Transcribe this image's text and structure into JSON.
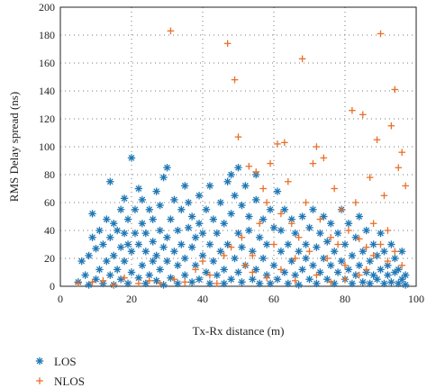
{
  "chart_data": {
    "type": "scatter",
    "xlabel": "Tx-Rx distance (m)",
    "ylabel": "RMS Delay spread (ns)",
    "xlim": [
      0,
      100
    ],
    "ylim": [
      0,
      200
    ],
    "xticks": [
      "0",
      "20",
      "40",
      "60",
      "80",
      "100"
    ],
    "yticks": [
      "0",
      "20",
      "40",
      "60",
      "80",
      "100",
      "120",
      "140",
      "160",
      "180",
      "200"
    ],
    "grid": "dotted",
    "legend_position": "bottom-left",
    "series": [
      {
        "name": "LOS",
        "color": "#1f77b4",
        "marker": "asterisk",
        "points": [
          [
            5,
            3
          ],
          [
            6,
            18
          ],
          [
            7,
            8
          ],
          [
            8,
            1
          ],
          [
            8,
            22
          ],
          [
            9,
            35
          ],
          [
            9,
            52
          ],
          [
            10,
            5
          ],
          [
            10,
            27
          ],
          [
            11,
            12
          ],
          [
            11,
            40
          ],
          [
            12,
            2
          ],
          [
            12,
            30
          ],
          [
            13,
            18
          ],
          [
            13,
            48
          ],
          [
            14,
            8
          ],
          [
            14,
            35
          ],
          [
            14,
            75
          ],
          [
            15,
            1
          ],
          [
            15,
            22
          ],
          [
            15,
            45
          ],
          [
            16,
            12
          ],
          [
            16,
            40
          ],
          [
            17,
            5
          ],
          [
            17,
            28
          ],
          [
            17,
            55
          ],
          [
            18,
            18
          ],
          [
            18,
            38
          ],
          [
            18,
            63
          ],
          [
            19,
            2
          ],
          [
            19,
            30
          ],
          [
            19,
            48
          ],
          [
            20,
            10
          ],
          [
            20,
            25
          ],
          [
            20,
            92
          ],
          [
            21,
            38
          ],
          [
            21,
            55
          ],
          [
            22,
            6
          ],
          [
            22,
            30
          ],
          [
            22,
            70
          ],
          [
            23,
            15
          ],
          [
            23,
            45
          ],
          [
            23,
            62
          ],
          [
            24,
            2
          ],
          [
            24,
            25
          ],
          [
            24,
            38
          ],
          [
            25,
            8
          ],
          [
            25,
            55
          ],
          [
            26,
            18
          ],
          [
            26,
            32
          ],
          [
            26,
            48
          ],
          [
            27,
            4
          ],
          [
            27,
            22
          ],
          [
            27,
            68
          ],
          [
            28,
            12
          ],
          [
            28,
            40
          ],
          [
            28,
            58
          ],
          [
            29,
            1
          ],
          [
            29,
            28
          ],
          [
            29,
            78
          ],
          [
            30,
            18
          ],
          [
            30,
            35
          ],
          [
            30,
            85
          ],
          [
            31,
            6
          ],
          [
            31,
            48
          ],
          [
            32,
            25
          ],
          [
            32,
            62
          ],
          [
            33,
            2
          ],
          [
            33,
            15
          ],
          [
            33,
            40
          ],
          [
            34,
            30
          ],
          [
            34,
            55
          ],
          [
            35,
            8
          ],
          [
            35,
            20
          ],
          [
            35,
            72
          ],
          [
            36,
            42
          ],
          [
            36,
            60
          ],
          [
            37,
            3
          ],
          [
            37,
            28
          ],
          [
            37,
            50
          ],
          [
            38,
            15
          ],
          [
            38,
            35
          ],
          [
            39,
            5
          ],
          [
            39,
            45
          ],
          [
            39,
            65
          ],
          [
            40,
            22
          ],
          [
            40,
            38
          ],
          [
            41,
            10
          ],
          [
            41,
            55
          ],
          [
            42,
            2
          ],
          [
            42,
            30
          ],
          [
            42,
            72
          ],
          [
            43,
            18
          ],
          [
            43,
            48
          ],
          [
            44,
            8
          ],
          [
            44,
            38
          ],
          [
            45,
            25
          ],
          [
            45,
            60
          ],
          [
            46,
            2
          ],
          [
            46,
            12
          ],
          [
            46,
            45
          ],
          [
            47,
            30
          ],
          [
            47,
            75
          ],
          [
            48,
            5
          ],
          [
            48,
            52
          ],
          [
            48,
            80
          ],
          [
            49,
            20
          ],
          [
            49,
            65
          ],
          [
            50,
            10
          ],
          [
            50,
            38
          ],
          [
            50,
            85
          ],
          [
            51,
            3
          ],
          [
            51,
            28
          ],
          [
            51,
            58
          ],
          [
            52,
            15
          ],
          [
            52,
            72
          ],
          [
            53,
            40
          ],
          [
            53,
            50
          ],
          [
            54,
            5
          ],
          [
            54,
            25
          ],
          [
            55,
            12
          ],
          [
            55,
            62
          ],
          [
            55,
            80
          ],
          [
            56,
            2
          ],
          [
            56,
            35
          ],
          [
            57,
            20
          ],
          [
            57,
            48
          ],
          [
            58,
            8
          ],
          [
            58,
            30
          ],
          [
            59,
            2
          ],
          [
            59,
            55
          ],
          [
            60,
            15
          ],
          [
            60,
            42
          ],
          [
            61,
            5
          ],
          [
            61,
            68
          ],
          [
            62,
            25
          ],
          [
            62,
            40
          ],
          [
            63,
            10
          ],
          [
            63,
            55
          ],
          [
            64,
            2
          ],
          [
            64,
            30
          ],
          [
            65,
            18
          ],
          [
            65,
            48
          ],
          [
            66,
            8
          ],
          [
            66,
            38
          ],
          [
            67,
            1
          ],
          [
            67,
            25
          ],
          [
            68,
            12
          ],
          [
            68,
            50
          ],
          [
            69,
            30
          ],
          [
            69,
            20
          ],
          [
            70,
            5
          ],
          [
            70,
            42
          ],
          [
            71,
            15
          ],
          [
            71,
            55
          ],
          [
            72,
            2
          ],
          [
            72,
            28
          ],
          [
            73,
            38
          ],
          [
            73,
            10
          ],
          [
            74,
            20
          ],
          [
            74,
            50
          ],
          [
            75,
            5
          ],
          [
            75,
            32
          ],
          [
            76,
            15
          ],
          [
            76,
            45
          ],
          [
            77,
            2
          ],
          [
            77,
            25
          ],
          [
            78,
            10
          ],
          [
            78,
            38
          ],
          [
            79,
            18
          ],
          [
            79,
            55
          ],
          [
            80,
            5
          ],
          [
            80,
            30
          ],
          [
            81,
            12
          ],
          [
            81,
            45
          ],
          [
            82,
            2
          ],
          [
            82,
            22
          ],
          [
            83,
            8
          ],
          [
            83,
            35
          ],
          [
            84,
            15
          ],
          [
            84,
            50
          ],
          [
            85,
            3
          ],
          [
            85,
            25
          ],
          [
            86,
            10
          ],
          [
            86,
            40
          ],
          [
            87,
            2
          ],
          [
            87,
            18
          ],
          [
            88,
            8
          ],
          [
            88,
            30
          ],
          [
            89,
            5
          ],
          [
            89,
            22
          ],
          [
            90,
            12
          ],
          [
            90,
            38
          ],
          [
            91,
            2
          ],
          [
            91,
            25
          ],
          [
            92,
            8
          ],
          [
            92,
            15
          ],
          [
            93,
            3
          ],
          [
            93,
            30
          ],
          [
            94,
            10
          ],
          [
            94,
            20
          ],
          [
            95,
            2
          ],
          [
            95,
            12
          ],
          [
            96,
            5
          ],
          [
            96,
            25
          ],
          [
            97,
            1
          ],
          [
            97,
            8
          ]
        ]
      },
      {
        "name": "NLOS",
        "color": "#e8702a",
        "marker": "plus",
        "points": [
          [
            5,
            2
          ],
          [
            9,
            3
          ],
          [
            12,
            4
          ],
          [
            15,
            1
          ],
          [
            18,
            6
          ],
          [
            22,
            2
          ],
          [
            25,
            4
          ],
          [
            28,
            2
          ],
          [
            31,
            183
          ],
          [
            32,
            5
          ],
          [
            35,
            3
          ],
          [
            38,
            12
          ],
          [
            40,
            18
          ],
          [
            42,
            8
          ],
          [
            44,
            2
          ],
          [
            46,
            22
          ],
          [
            47,
            174
          ],
          [
            48,
            28
          ],
          [
            49,
            148
          ],
          [
            50,
            107
          ],
          [
            51,
            35
          ],
          [
            52,
            15
          ],
          [
            53,
            86
          ],
          [
            54,
            22
          ],
          [
            55,
            82
          ],
          [
            56,
            45
          ],
          [
            57,
            70
          ],
          [
            58,
            60
          ],
          [
            59,
            88
          ],
          [
            60,
            30
          ],
          [
            61,
            102
          ],
          [
            62,
            52
          ],
          [
            63,
            103
          ],
          [
            64,
            75
          ],
          [
            65,
            45
          ],
          [
            66,
            20
          ],
          [
            67,
            35
          ],
          [
            68,
            163
          ],
          [
            69,
            60
          ],
          [
            70,
            25
          ],
          [
            71,
            88
          ],
          [
            72,
            100
          ],
          [
            73,
            48
          ],
          [
            74,
            92
          ],
          [
            75,
            20
          ],
          [
            76,
            35
          ],
          [
            77,
            70
          ],
          [
            78,
            30
          ],
          [
            79,
            55
          ],
          [
            80,
            15
          ],
          [
            81,
            40
          ],
          [
            82,
            126
          ],
          [
            83,
            60
          ],
          [
            84,
            34
          ],
          [
            85,
            123
          ],
          [
            86,
            28
          ],
          [
            87,
            78
          ],
          [
            88,
            45
          ],
          [
            89,
            105
          ],
          [
            90,
            181
          ],
          [
            91,
            65
          ],
          [
            92,
            40
          ],
          [
            93,
            115
          ],
          [
            94,
            141
          ],
          [
            95,
            85
          ],
          [
            96,
            96
          ],
          [
            97,
            72
          ],
          [
            86,
            12
          ],
          [
            88,
            22
          ],
          [
            90,
            30
          ],
          [
            92,
            18
          ],
          [
            94,
            25
          ],
          [
            96,
            15
          ],
          [
            84,
            8
          ],
          [
            80,
            5
          ],
          [
            76,
            3
          ],
          [
            72,
            8
          ],
          [
            66,
            4
          ],
          [
            62,
            12
          ],
          [
            58,
            6
          ],
          [
            54,
            10
          ]
        ]
      }
    ]
  }
}
